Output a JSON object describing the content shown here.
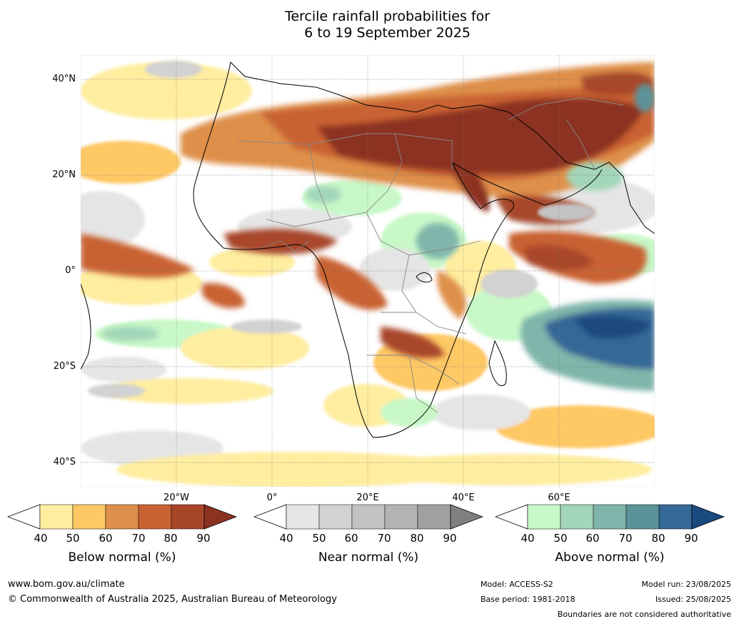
{
  "title": {
    "line1": "Tercile rainfall probabilities for",
    "line2": "6 to 19 September 2025"
  },
  "map": {
    "lat_labels": [
      "40°N",
      "20°N",
      "0°",
      "20°S",
      "40°S"
    ],
    "lon_labels": [
      "20°W",
      "0°",
      "20°E",
      "40°E",
      "60°E"
    ],
    "colors": {
      "ocean_land_blank": "#ffffff",
      "below": [
        "#ffeda0",
        "#fec865",
        "#de8f4a",
        "#c96232",
        "#a8462a",
        "#8c3222"
      ],
      "near": [
        "#e5e5e5",
        "#d2d2d2",
        "#c3c3c3",
        "#b3b3b3",
        "#a0a0a0",
        "#808080"
      ],
      "above": [
        "#c8f8c8",
        "#a3d6b9",
        "#7fb5aa",
        "#5b9299",
        "#346896",
        "#1a4a80"
      ]
    }
  },
  "colorbars": [
    {
      "label": "Below normal (%)",
      "ticks": [
        "40",
        "50",
        "60",
        "70",
        "80",
        "90"
      ],
      "colors": [
        "#ffeda0",
        "#fec865",
        "#de8f4a",
        "#c96232",
        "#a8462a",
        "#8c3222"
      ]
    },
    {
      "label": "Near normal (%)",
      "ticks": [
        "40",
        "50",
        "60",
        "70",
        "80",
        "90"
      ],
      "colors": [
        "#e5e5e5",
        "#d2d2d2",
        "#c3c3c3",
        "#b3b3b3",
        "#a0a0a0",
        "#808080"
      ]
    },
    {
      "label": "Above normal (%)",
      "ticks": [
        "40",
        "50",
        "60",
        "70",
        "80",
        "90"
      ],
      "colors": [
        "#c8f8c8",
        "#a3d6b9",
        "#7fb5aa",
        "#5b9299",
        "#346896",
        "#1a4a80"
      ]
    }
  ],
  "footer": {
    "website": "www.bom.gov.au/climate",
    "copyright": "© Commonwealth of Australia 2025, Australian Bureau of Meteorology",
    "model": "Model: ACCESS-S2",
    "base_period": "Base period: 1981-2018",
    "model_run": "Model run: 23/08/2025",
    "issued": "Issued: 25/08/2025",
    "disclaimer": "Boundaries are not considered authoritative"
  }
}
